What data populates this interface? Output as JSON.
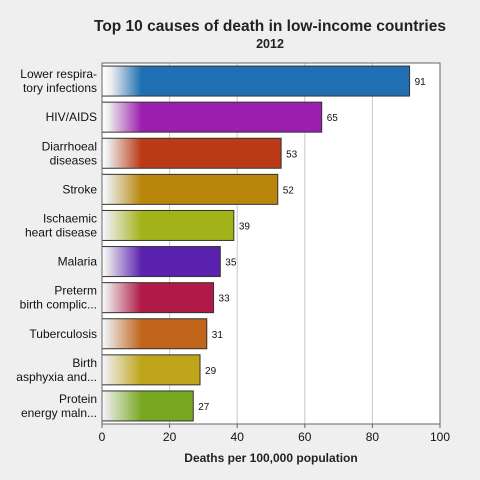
{
  "chart_data": {
    "type": "bar",
    "orientation": "horizontal",
    "title": "Top 10 causes of death in low-income countries",
    "subtitle": "2012",
    "xlabel": "Deaths per 100,000 population",
    "xlim": [
      0,
      100
    ],
    "xticks": [
      0,
      20,
      40,
      60,
      80,
      100
    ],
    "grid": true,
    "categories": [
      [
        "Lower respira-",
        "tory infections"
      ],
      [
        "HIV/AIDS"
      ],
      [
        "Diarrhoeal",
        "diseases"
      ],
      [
        "Stroke"
      ],
      [
        "Ischaemic",
        "heart disease"
      ],
      [
        "Malaria"
      ],
      [
        "Preterm",
        "birth complic..."
      ],
      [
        "Tuberculosis"
      ],
      [
        "Birth",
        "asphyxia and..."
      ],
      [
        "Protein",
        "energy maln..."
      ]
    ],
    "values": [
      91,
      65,
      53,
      52,
      39,
      35,
      33,
      31,
      29,
      27
    ],
    "colors": [
      "#1f6fb2",
      "#9b1fae",
      "#b93a14",
      "#b8860b",
      "#a2b31a",
      "#5b22b0",
      "#b01a48",
      "#c0651a",
      "#bfa51a",
      "#78a822"
    ]
  }
}
